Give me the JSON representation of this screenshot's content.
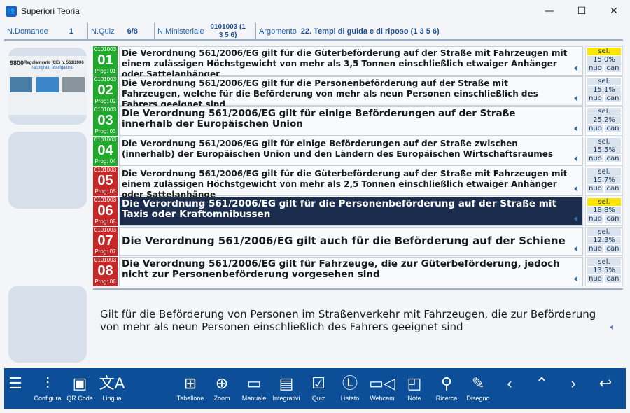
{
  "window": {
    "title": "Superiori Teoria"
  },
  "info": {
    "n_domande_label": "N.Domande",
    "n_domande": "1",
    "n_quiz_label": "N.Quiz",
    "n_quiz": "6/8",
    "n_min_label": "N.Ministeriale",
    "n_min": "0101003 (1 3 5 6)",
    "argomento_label": "Argomento",
    "argomento": "22. Tempi di guida e di riposo (1 3 5 6)"
  },
  "image": {
    "number": "9800",
    "caption": "Regolamento (CE) n. 561/2006",
    "subcaption": "tachigrafo obbligatorio"
  },
  "questions": [
    {
      "code": "0101003",
      "num": "01",
      "prog": "Prog: 01",
      "color": "#1faa2c",
      "text": "Die Verordnung 561/2006/EG gilt für die Güterbeförderung auf der Straße mit Fahrzeugen mit einem zulässigen Höchstgewicht von mehr als 3,5 Tonnen einschließlich etwaiger Anhänger oder Sattelanhänger",
      "pct": "15.0%",
      "sel_highlight": true
    },
    {
      "code": "0101003",
      "num": "02",
      "prog": "Prog: 02",
      "color": "#1faa2c",
      "text": "Die Verordnung 561/2006/EG gilt für die Personenbeförderung auf der Straße mit Fahrzeugen, welche für die Beförderung von mehr als neun Personen einschließlich des Fahrers geeignet sind",
      "pct": "15.1%",
      "sel_highlight": false
    },
    {
      "code": "0101003",
      "num": "03",
      "prog": "Prog: 03",
      "color": "#1faa2c",
      "text": "Die Verordnung 561/2006/EG gilt für einige Beförderungen auf der Straße innerhalb der Europäischen Union",
      "pct": "25.2%",
      "sel_highlight": false
    },
    {
      "code": "0101003",
      "num": "04",
      "prog": "Prog: 04",
      "color": "#1faa2c",
      "text": "Die Verordnung 561/2006/EG gilt für einige Beförderungen auf der Straße zwischen (innerhalb) der Europäischen Union und den Ländern des Europäischen Wirtschaftsraumes",
      "pct": "15.5%",
      "sel_highlight": false
    },
    {
      "code": "0101003",
      "num": "05",
      "prog": "Prog: 05",
      "color": "#c62828",
      "text": "Die Verordnung 561/2006/EG gilt für die Güterbeförderung auf der Straße mit Fahrzeugen mit einem zulässigen Höchstgewicht von mehr als 2,5 Tonnen einschließlich etwaiger Anhänger oder Sattelanhänge",
      "pct": "15.7%",
      "sel_highlight": false
    },
    {
      "code": "0101003",
      "num": "06",
      "prog": "Prog: 06",
      "color": "#c62828",
      "text": "Die Verordnung 561/2006/EG gilt für die Personenbeförderung auf der Straße mit Taxis oder Kraftomnibussen",
      "pct": "18.8%",
      "sel_highlight": true,
      "selected": true
    },
    {
      "code": "0101003",
      "num": "07",
      "prog": "Prog: 07",
      "color": "#c62828",
      "text": "Die Verordnung 561/2006/EG gilt auch für die Beförderung auf der Schiene",
      "pct": "12.3%",
      "sel_highlight": false
    },
    {
      "code": "0101003",
      "num": "08",
      "prog": "Prog: 08",
      "color": "#c62828",
      "text": "Die Verordnung 561/2006/EG gilt für Fahrzeuge, die zur Güterbeförderung, jedoch nicht zur Personenbeförderung vorgesehen sind",
      "pct": "13.5%",
      "sel_highlight": false
    }
  ],
  "side_labels": {
    "sel": "sel.",
    "nuo": "nuo",
    "can": "can"
  },
  "answer": {
    "text": "Gilt für die Beförderung von Personen im Straßenverkehr mit Fahrzeugen, die zur Beförderung von mehr als neun Personen einschließlich des Fahrers geeignet sind"
  },
  "toolbar": [
    {
      "label": "",
      "icon": "menu-icon",
      "glyph": "☰"
    },
    {
      "label": "Configura",
      "icon": "sliders-icon",
      "glyph": "⫶"
    },
    {
      "label": "QR Code",
      "icon": "qr-code-icon",
      "glyph": "▣"
    },
    {
      "label": "Lingua",
      "icon": "translate-icon",
      "glyph": "文A"
    },
    {
      "label": "Tabellone",
      "icon": "table-icon",
      "glyph": "⊞"
    },
    {
      "label": "Zoom",
      "icon": "zoom-in-icon",
      "glyph": "⊕"
    },
    {
      "label": "Manuale",
      "icon": "book-icon",
      "glyph": "▭"
    },
    {
      "label": "Integrativi",
      "icon": "images-icon",
      "glyph": "▤"
    },
    {
      "label": "Quiz",
      "icon": "quiz-icon",
      "glyph": "☑"
    },
    {
      "label": "Listato",
      "icon": "list-l-icon",
      "glyph": "Ⓛ"
    },
    {
      "label": "Webcam",
      "icon": "webcam-icon",
      "glyph": "▭◁"
    },
    {
      "label": "Note",
      "icon": "note-icon",
      "glyph": "◰"
    },
    {
      "label": "Ricerca",
      "icon": "search-icon",
      "glyph": "⚲"
    },
    {
      "label": "Disegno",
      "icon": "draw-icon",
      "glyph": "✎"
    },
    {
      "label": "",
      "icon": "prev-icon",
      "glyph": "‹"
    },
    {
      "label": "",
      "icon": "up-down-icon",
      "glyph": "⌃"
    },
    {
      "label": "",
      "icon": "next-icon",
      "glyph": "›"
    },
    {
      "label": "",
      "icon": "return-icon",
      "glyph": "↩"
    }
  ]
}
